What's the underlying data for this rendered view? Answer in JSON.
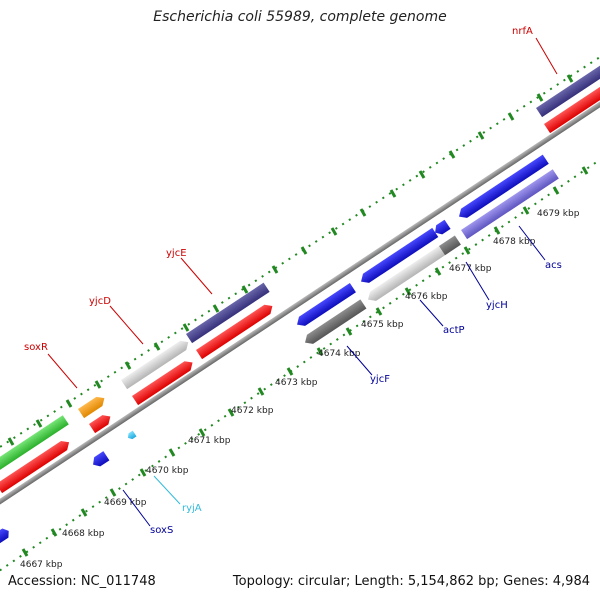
{
  "title": "Escherichia coli 55989, complete genome",
  "footer": {
    "accession": "Accession: NC_011748",
    "stats": "Topology: circular; Length: 5,154,862 bp; Genes: 4,984"
  },
  "colors": {
    "red": "#ff1e1e",
    "navy": "#4a4590",
    "green": "#44cc44",
    "orange": "#ff9900",
    "blue": "#1a1ae6",
    "light_blue": "#3ec8ee",
    "light_gray": "#cdcdcd",
    "dark_gray": "#6e6e6e",
    "purple": "#7a70d8",
    "tick_green": "#228822",
    "label_red": "#cc0000",
    "label_blue": "#000099",
    "label_cyan": "#33bbdd"
  },
  "kbp_labels": [
    "4667 kbp",
    "4668 kbp",
    "4669 kbp",
    "4670 kbp",
    "4671 kbp",
    "4672 kbp",
    "4673 kbp",
    "4674 kbp",
    "4675 kbp",
    "4676 kbp",
    "4677 kbp",
    "4678 kbp",
    "4679 kbp"
  ],
  "gene_labels": {
    "nrfA": "nrfA",
    "yjcE": "yjcE",
    "yjcD": "yjcD",
    "soxR": "soxR",
    "acs": "acs",
    "yjcH": "yjcH",
    "actP": "actP",
    "yjcF": "yjcF",
    "ryjA": "ryjA",
    "soxS": "soxS"
  }
}
